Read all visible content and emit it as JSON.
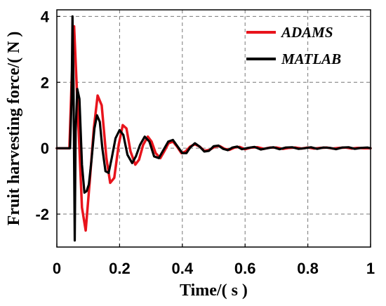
{
  "chart_data": {
    "type": "line",
    "xlabel": "Time/( s )",
    "ylabel": "Fruit harvesting force/( N )",
    "xlim": [
      0,
      1
    ],
    "ylim": [
      -3,
      4.2
    ],
    "x_ticks": [
      "0",
      "0.2",
      "0.4",
      "0.6",
      "0.8",
      "1"
    ],
    "y_ticks": [
      "-2",
      "0",
      "2",
      "4"
    ],
    "grid": true,
    "legend_position": "top-right",
    "series": [
      {
        "name": "ADAMS",
        "color": "#e8141c",
        "x": [
          0,
          0.04,
          0.047,
          0.055,
          0.065,
          0.08,
          0.092,
          0.105,
          0.118,
          0.13,
          0.143,
          0.158,
          0.17,
          0.183,
          0.197,
          0.21,
          0.222,
          0.235,
          0.25,
          0.262,
          0.275,
          0.29,
          0.302,
          0.315,
          0.33,
          0.342,
          0.356,
          0.37,
          0.383,
          0.397,
          0.41,
          0.425,
          0.44,
          0.455,
          0.47,
          0.487,
          0.505,
          0.52,
          0.535,
          0.55,
          0.567,
          0.583,
          0.6,
          0.62,
          0.64,
          0.66,
          0.68,
          0.7,
          0.72,
          0.74,
          0.76,
          0.78,
          0.8,
          0.82,
          0.84,
          0.86,
          0.88,
          0.9,
          0.92,
          0.94,
          0.96,
          0.98,
          1.0
        ],
        "y": [
          0,
          0,
          2.0,
          3.7,
          1.5,
          -1.8,
          -2.5,
          -1.0,
          0.6,
          1.6,
          1.3,
          -0.3,
          -1.05,
          -0.9,
          0.1,
          0.7,
          0.6,
          -0.1,
          -0.5,
          -0.35,
          0.1,
          0.35,
          0.2,
          -0.15,
          -0.3,
          -0.1,
          0.15,
          0.2,
          0.05,
          -0.15,
          -0.1,
          0.05,
          0.12,
          0.05,
          -0.08,
          -0.05,
          0.05,
          0.06,
          -0.02,
          -0.05,
          0.02,
          0.04,
          -0.03,
          0.02,
          0.03,
          -0.02,
          0.02,
          0.02,
          -0.02,
          0.01,
          0.02,
          -0.01,
          0.02,
          -0.01,
          0.01,
          0.02,
          -0.01,
          0.01,
          0.02,
          -0.01,
          0.01,
          0.0,
          0.0
        ]
      },
      {
        "name": "MATLAB",
        "color": "#000000",
        "x": [
          0,
          0.042,
          0.047,
          0.05,
          0.053,
          0.057,
          0.06,
          0.065,
          0.072,
          0.08,
          0.088,
          0.095,
          0.102,
          0.11,
          0.12,
          0.128,
          0.137,
          0.145,
          0.155,
          0.165,
          0.175,
          0.187,
          0.2,
          0.212,
          0.225,
          0.24,
          0.252,
          0.265,
          0.28,
          0.295,
          0.31,
          0.325,
          0.34,
          0.355,
          0.37,
          0.385,
          0.4,
          0.413,
          0.425,
          0.44,
          0.455,
          0.47,
          0.485,
          0.5,
          0.515,
          0.53,
          0.545,
          0.56,
          0.575,
          0.59,
          0.61,
          0.63,
          0.65,
          0.67,
          0.69,
          0.71,
          0.73,
          0.75,
          0.77,
          0.79,
          0.81,
          0.83,
          0.85,
          0.87,
          0.89,
          0.91,
          0.93,
          0.95,
          0.97,
          0.99,
          1.0
        ],
        "y": [
          0,
          0,
          1.5,
          4.0,
          2.0,
          -2.8,
          0.5,
          1.8,
          1.5,
          -0.5,
          -1.35,
          -1.3,
          -1.1,
          -0.4,
          0.6,
          1.0,
          0.8,
          0.0,
          -0.7,
          -0.75,
          -0.3,
          0.3,
          0.55,
          0.4,
          -0.2,
          -0.45,
          -0.25,
          0.1,
          0.35,
          0.2,
          -0.25,
          -0.3,
          -0.05,
          0.2,
          0.25,
          0.05,
          -0.15,
          -0.15,
          0.02,
          0.15,
          0.05,
          -0.1,
          -0.08,
          0.06,
          0.08,
          -0.02,
          -0.06,
          0.02,
          0.05,
          -0.03,
          0.01,
          0.04,
          -0.04,
          0.0,
          0.03,
          -0.03,
          0.02,
          0.03,
          -0.02,
          0.0,
          0.03,
          -0.02,
          0.02,
          0.01,
          -0.03,
          0.02,
          0.03,
          -0.02,
          0.01,
          0.02,
          0.0
        ]
      }
    ]
  }
}
